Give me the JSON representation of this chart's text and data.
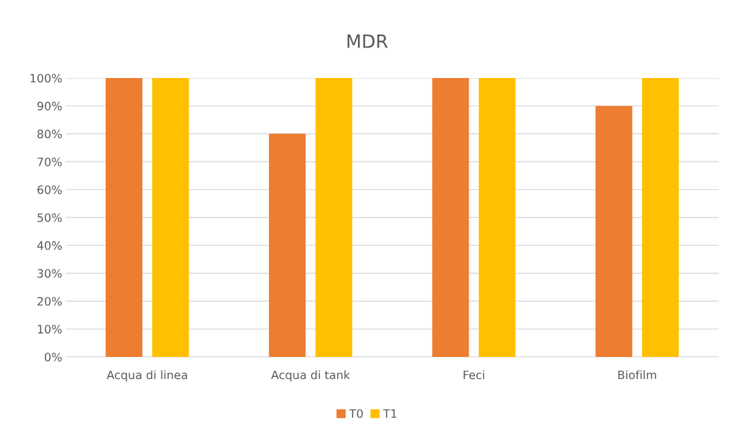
{
  "chart_data": {
    "type": "bar",
    "title": "MDR",
    "categories": [
      "Acqua di linea",
      "Acqua di tank",
      "Feci",
      "Biofilm"
    ],
    "series": [
      {
        "name": "T0",
        "color": "#ed7d31",
        "values": [
          100,
          80,
          100,
          90
        ]
      },
      {
        "name": "T1",
        "color": "#ffc000",
        "values": [
          100,
          100,
          100,
          100
        ]
      }
    ],
    "ylim": [
      0,
      100
    ],
    "yticks": [
      {
        "value": 0,
        "label": "0%"
      },
      {
        "value": 10,
        "label": "10%"
      },
      {
        "value": 20,
        "label": "20%"
      },
      {
        "value": 30,
        "label": "30%"
      },
      {
        "value": 40,
        "label": "40%"
      },
      {
        "value": 50,
        "label": "50%"
      },
      {
        "value": 60,
        "label": "60%"
      },
      {
        "value": 70,
        "label": "70%"
      },
      {
        "value": 80,
        "label": "80%"
      },
      {
        "value": 90,
        "label": "90%"
      },
      {
        "value": 100,
        "label": "100%"
      }
    ],
    "grid": "y",
    "legend": "bottom"
  }
}
